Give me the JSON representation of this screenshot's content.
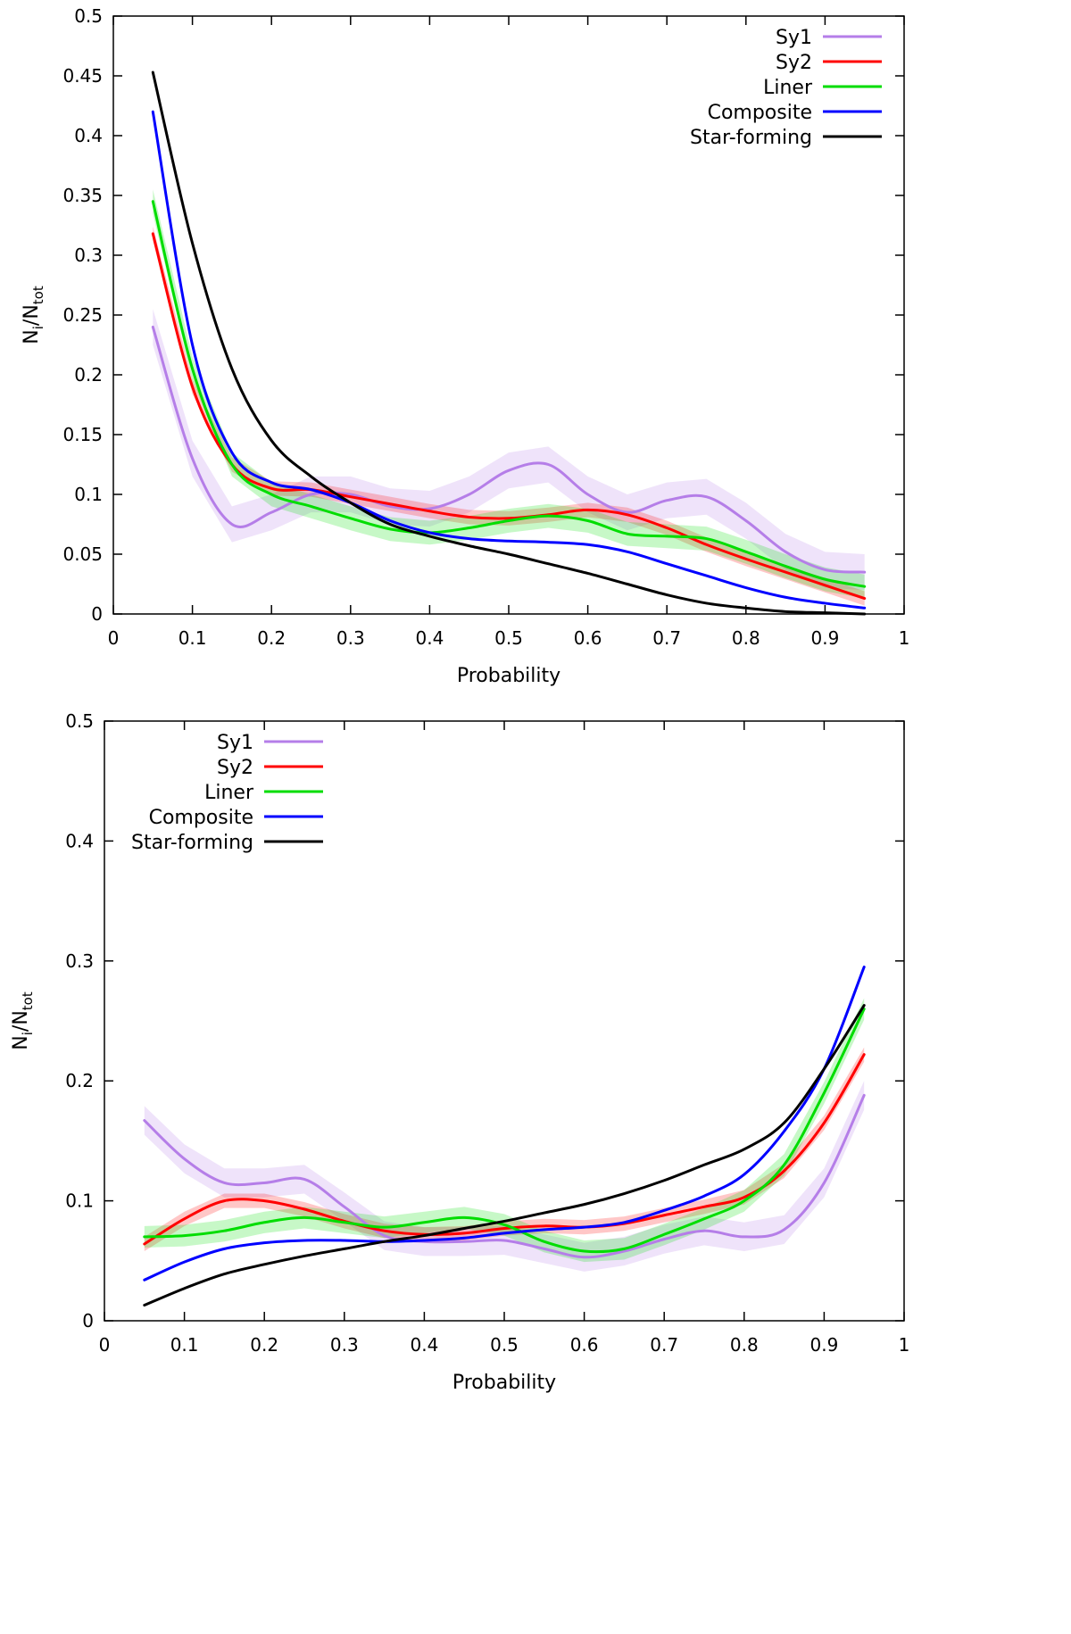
{
  "chart_data": [
    {
      "type": "line",
      "xlabel": "Probability",
      "ylabel": "N_i/N_tot",
      "ylabel_main": "N",
      "ylabel_sub_i": "i",
      "ylabel_mid": "/N",
      "ylabel_sub_tot": "tot",
      "xlim": [
        0,
        1
      ],
      "ylim": [
        0,
        0.5
      ],
      "xticks": [
        "0",
        "0.1",
        "0.2",
        "0.3",
        "0.4",
        "0.5",
        "0.6",
        "0.7",
        "0.8",
        "0.9",
        "1"
      ],
      "yticks": [
        "0",
        "0.05",
        "0.1",
        "0.15",
        "0.2",
        "0.25",
        "0.3",
        "0.35",
        "0.4",
        "0.45",
        "0.5"
      ],
      "grid": false,
      "legend_position": "top-right",
      "x": [
        0.05,
        0.1,
        0.15,
        0.2,
        0.25,
        0.3,
        0.35,
        0.4,
        0.45,
        0.5,
        0.55,
        0.6,
        0.65,
        0.7,
        0.75,
        0.8,
        0.85,
        0.9,
        0.95
      ],
      "series": [
        {
          "name": "Sy1",
          "color": "#b57ee8",
          "band": true,
          "band_halfwidth": 0.015,
          "values": [
            0.24,
            0.13,
            0.075,
            0.085,
            0.1,
            0.1,
            0.09,
            0.088,
            0.1,
            0.12,
            0.125,
            0.1,
            0.085,
            0.095,
            0.098,
            0.078,
            0.052,
            0.037,
            0.035
          ]
        },
        {
          "name": "Sy2",
          "color": "#ff0000",
          "band": true,
          "band_halfwidth": 0.006,
          "values": [
            0.318,
            0.19,
            0.125,
            0.105,
            0.104,
            0.098,
            0.092,
            0.086,
            0.081,
            0.08,
            0.083,
            0.087,
            0.083,
            0.072,
            0.058,
            0.046,
            0.035,
            0.024,
            0.013
          ]
        },
        {
          "name": "Liner",
          "color": "#00dd00",
          "band": true,
          "band_halfwidth": 0.01,
          "values": [
            0.345,
            0.205,
            0.125,
            0.1,
            0.09,
            0.08,
            0.071,
            0.068,
            0.072,
            0.078,
            0.082,
            0.078,
            0.067,
            0.065,
            0.063,
            0.052,
            0.04,
            0.029,
            0.023
          ]
        },
        {
          "name": "Composite",
          "color": "#0000ff",
          "band": false,
          "band_halfwidth": 0,
          "values": [
            0.42,
            0.225,
            0.135,
            0.11,
            0.104,
            0.093,
            0.078,
            0.068,
            0.063,
            0.061,
            0.06,
            0.058,
            0.052,
            0.042,
            0.032,
            0.022,
            0.014,
            0.009,
            0.005
          ]
        },
        {
          "name": "Star-forming",
          "color": "#000000",
          "band": false,
          "band_halfwidth": 0,
          "values": [
            0.453,
            0.31,
            0.205,
            0.145,
            0.115,
            0.093,
            0.075,
            0.065,
            0.057,
            0.05,
            0.042,
            0.034,
            0.025,
            0.016,
            0.009,
            0.005,
            0.002,
            0.001,
            0.0
          ]
        }
      ]
    },
    {
      "type": "line",
      "xlabel": "Probability",
      "ylabel": "N_i/N_tot",
      "ylabel_main": "N",
      "ylabel_sub_i": "i",
      "ylabel_mid": "/N",
      "ylabel_sub_tot": "tot",
      "xlim": [
        0,
        1
      ],
      "ylim": [
        0,
        0.5
      ],
      "xticks": [
        "0",
        "0.1",
        "0.2",
        "0.3",
        "0.4",
        "0.5",
        "0.6",
        "0.7",
        "0.8",
        "0.9",
        "1"
      ],
      "yticks": [
        "0",
        "0.1",
        "0.2",
        "0.3",
        "0.4",
        "0.5"
      ],
      "grid": false,
      "legend_position": "top-left",
      "x": [
        0.05,
        0.1,
        0.15,
        0.2,
        0.25,
        0.3,
        0.35,
        0.4,
        0.45,
        0.5,
        0.55,
        0.6,
        0.65,
        0.7,
        0.75,
        0.8,
        0.85,
        0.9,
        0.95
      ],
      "series": [
        {
          "name": "Sy1",
          "color": "#b57ee8",
          "band": true,
          "band_halfwidth": 0.012,
          "values": [
            0.167,
            0.135,
            0.115,
            0.115,
            0.118,
            0.095,
            0.071,
            0.066,
            0.066,
            0.067,
            0.06,
            0.053,
            0.058,
            0.068,
            0.075,
            0.07,
            0.076,
            0.115,
            0.188
          ]
        },
        {
          "name": "Sy2",
          "color": "#ff0000",
          "band": true,
          "band_halfwidth": 0.006,
          "values": [
            0.064,
            0.085,
            0.1,
            0.1,
            0.093,
            0.083,
            0.075,
            0.072,
            0.073,
            0.077,
            0.079,
            0.078,
            0.081,
            0.088,
            0.095,
            0.103,
            0.125,
            0.165,
            0.222
          ]
        },
        {
          "name": "Liner",
          "color": "#00dd00",
          "band": true,
          "band_halfwidth": 0.009,
          "values": [
            0.07,
            0.071,
            0.075,
            0.082,
            0.086,
            0.082,
            0.078,
            0.082,
            0.086,
            0.08,
            0.066,
            0.058,
            0.06,
            0.072,
            0.085,
            0.1,
            0.13,
            0.19,
            0.26
          ]
        },
        {
          "name": "Composite",
          "color": "#0000ff",
          "band": false,
          "band_halfwidth": 0,
          "values": [
            0.034,
            0.049,
            0.06,
            0.065,
            0.067,
            0.067,
            0.066,
            0.067,
            0.069,
            0.073,
            0.076,
            0.078,
            0.082,
            0.092,
            0.104,
            0.122,
            0.158,
            0.21,
            0.295
          ]
        },
        {
          "name": "Star-forming",
          "color": "#000000",
          "band": false,
          "band_halfwidth": 0,
          "values": [
            0.013,
            0.027,
            0.039,
            0.047,
            0.054,
            0.06,
            0.066,
            0.071,
            0.077,
            0.083,
            0.09,
            0.097,
            0.106,
            0.117,
            0.13,
            0.143,
            0.165,
            0.21,
            0.263
          ]
        }
      ]
    }
  ]
}
